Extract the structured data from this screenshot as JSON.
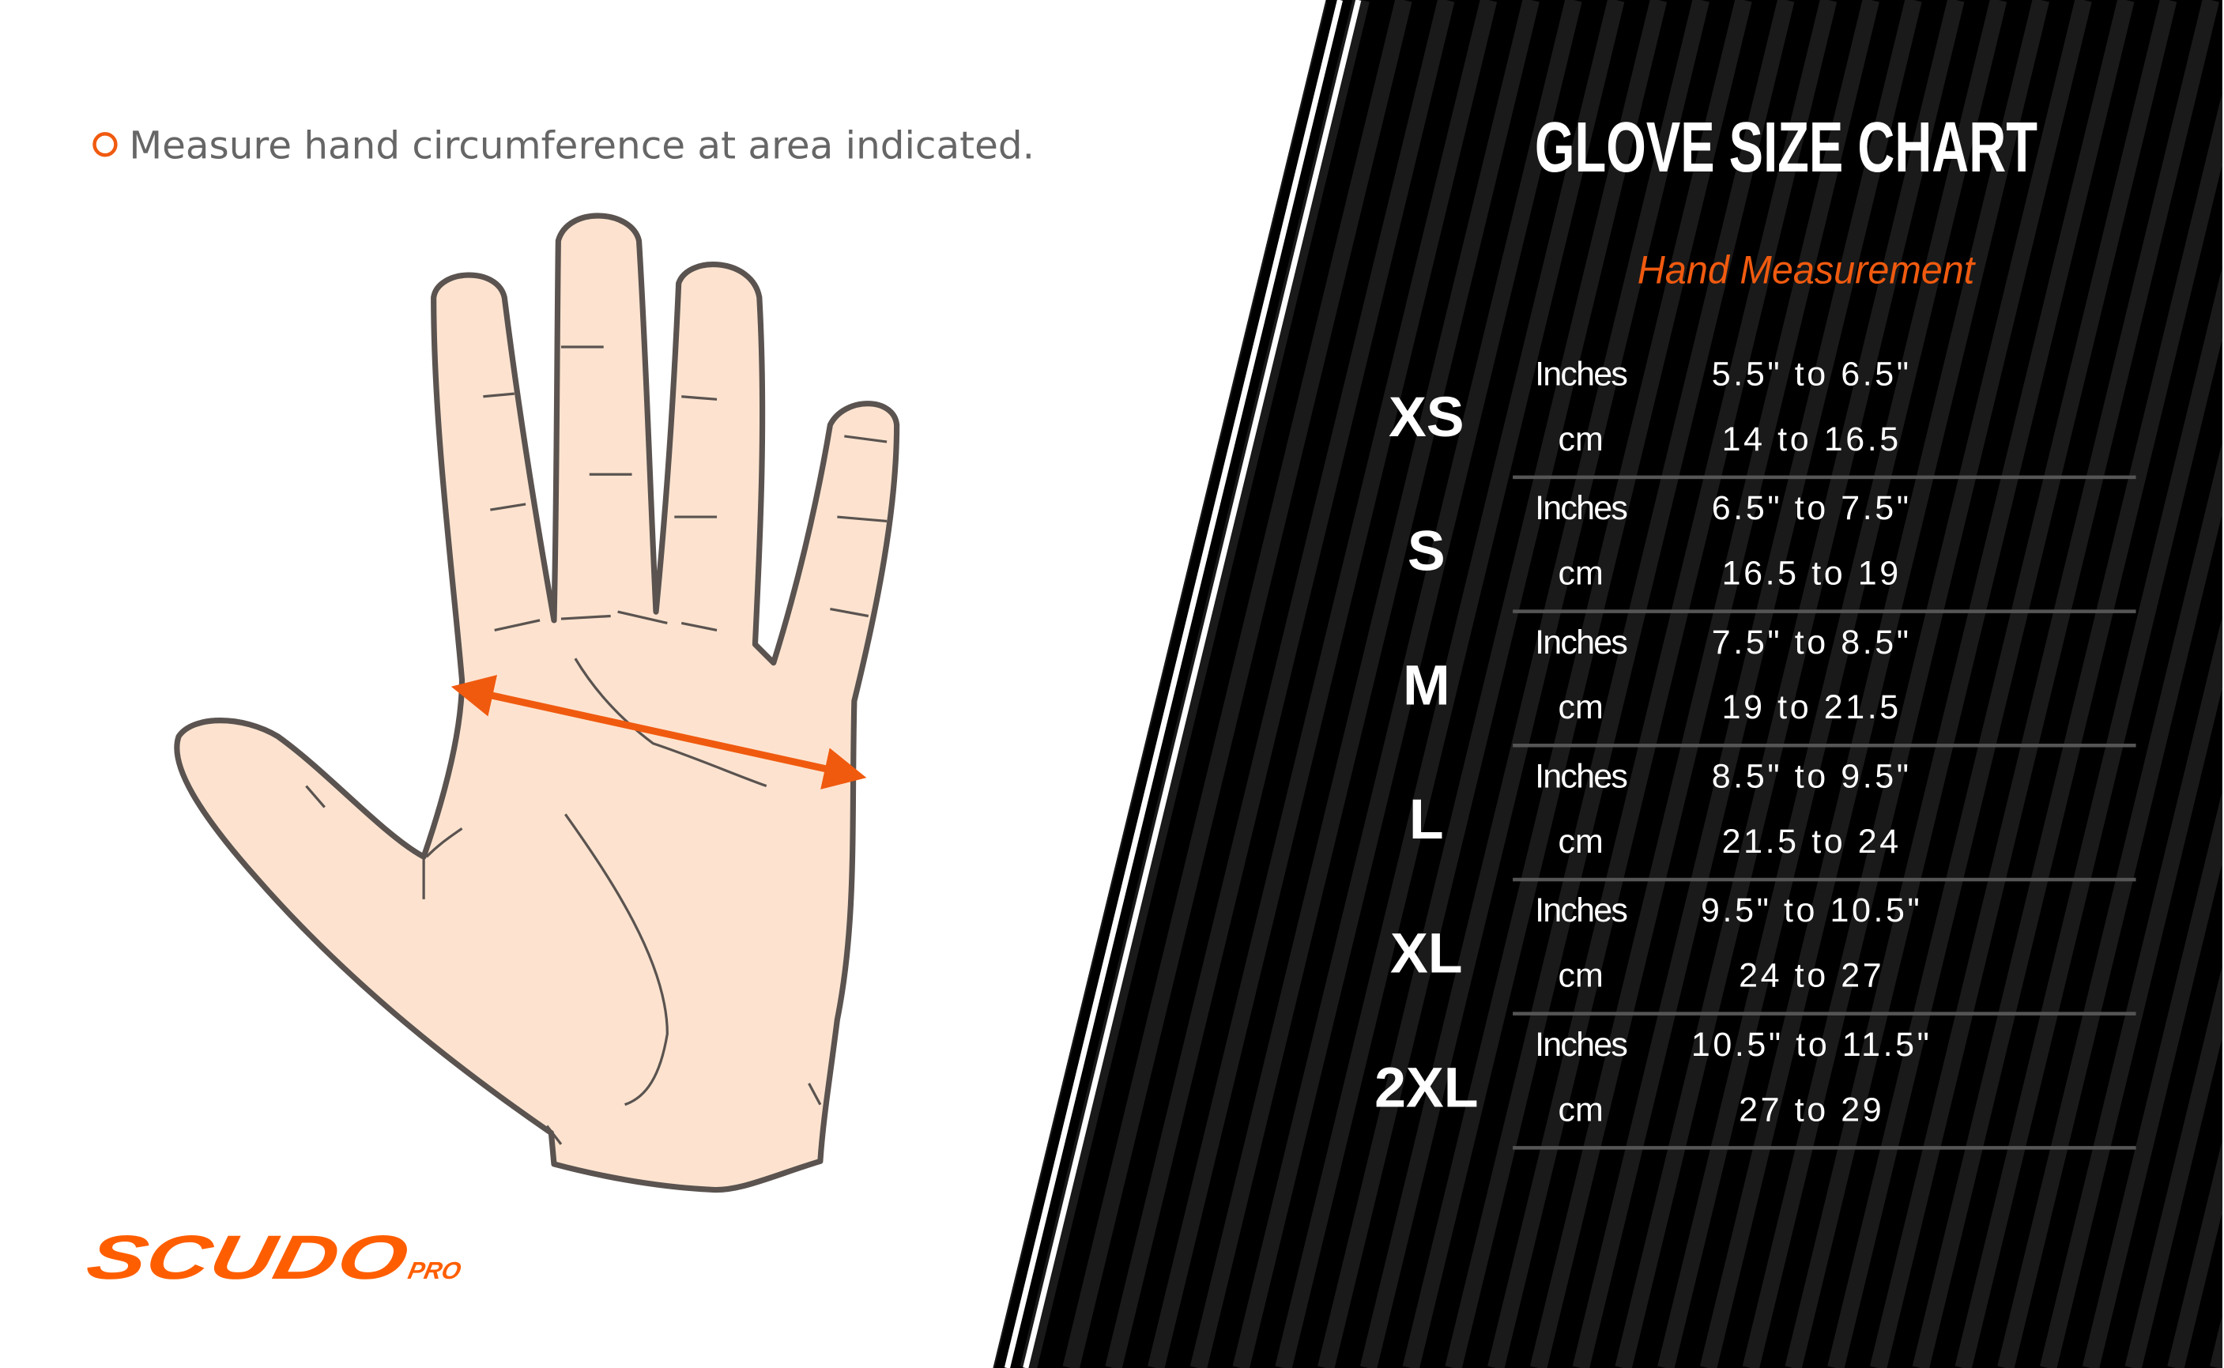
{
  "instruction": "Measure hand circumference at area indicated.",
  "logo": {
    "name": "SCUDO",
    "suffix": "PRO"
  },
  "chart": {
    "title": "GLOVE SIZE CHART",
    "subtitle": "Hand Measurement",
    "unit_inches": "Inches",
    "unit_cm": "cm",
    "rows": [
      {
        "size": "XS",
        "inches": "5.5\" to 6.5\"",
        "cm": "14 to 16.5"
      },
      {
        "size": "S",
        "inches": "6.5\" to 7.5\"",
        "cm": "16.5 to 19"
      },
      {
        "size": "M",
        "inches": "7.5\" to 8.5\"",
        "cm": "19 to 21.5"
      },
      {
        "size": "L",
        "inches": "8.5\" to 9.5\"",
        "cm": "21.5 to 24"
      },
      {
        "size": "XL",
        "inches": "9.5\" to 10.5\"",
        "cm": "24 to 27"
      },
      {
        "size": "2XL",
        "inches": "10.5\" to 11.5\"",
        "cm": "27 to 29"
      }
    ]
  },
  "colors": {
    "accent": "#f05a0f",
    "panel": "#000000",
    "skin": "#fde3cf",
    "outline": "#5a5350"
  }
}
